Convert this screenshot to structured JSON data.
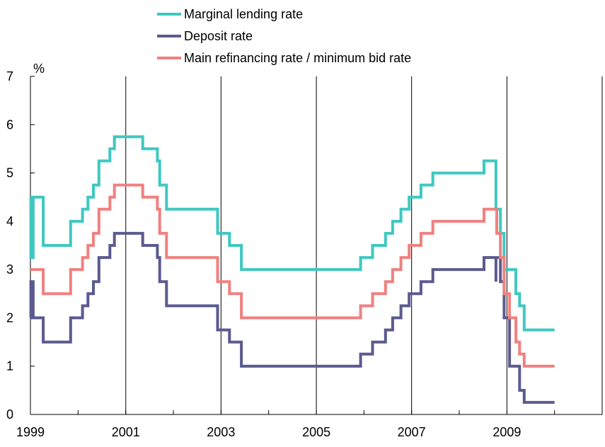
{
  "chart_data": {
    "type": "line",
    "ylabel": "%",
    "ylim": [
      0,
      7
    ],
    "yticks": [
      "0",
      "1",
      "2",
      "3",
      "4",
      "5",
      "6",
      "7"
    ],
    "xlim": [
      "1999-01-01",
      "2011-01-01"
    ],
    "xticks": [
      "1999",
      "2001",
      "2003",
      "2005",
      "2007",
      "2009"
    ],
    "grid": "vertical lines at labeled years",
    "legend_placement": "top",
    "series": [
      {
        "name": "Marginal lending rate",
        "color": "#3ec8c0",
        "points": [
          [
            "1999-01-01",
            4.5
          ],
          [
            "1999-01-04",
            3.25
          ],
          [
            "1999-01-22",
            4.5
          ],
          [
            "1999-04-09",
            3.5
          ],
          [
            "1999-11-05",
            4.0
          ],
          [
            "2000-02-04",
            4.25
          ],
          [
            "2000-03-17",
            4.5
          ],
          [
            "2000-04-28",
            4.75
          ],
          [
            "2000-06-09",
            5.25
          ],
          [
            "2000-06-28",
            5.25
          ],
          [
            "2000-09-01",
            5.5
          ],
          [
            "2000-10-06",
            5.75
          ],
          [
            "2001-05-11",
            5.5
          ],
          [
            "2001-08-31",
            5.25
          ],
          [
            "2001-09-18",
            4.75
          ],
          [
            "2001-11-09",
            4.25
          ],
          [
            "2002-12-06",
            3.75
          ],
          [
            "2003-03-07",
            3.5
          ],
          [
            "2003-06-06",
            3.0
          ],
          [
            "2005-12-06",
            3.25
          ],
          [
            "2006-03-08",
            3.5
          ],
          [
            "2006-06-15",
            3.75
          ],
          [
            "2006-08-09",
            4.0
          ],
          [
            "2006-10-11",
            4.25
          ],
          [
            "2006-12-13",
            4.5
          ],
          [
            "2007-03-14",
            4.75
          ],
          [
            "2007-06-13",
            5.0
          ],
          [
            "2008-07-09",
            5.25
          ],
          [
            "2008-10-09",
            4.25
          ],
          [
            "2008-11-12",
            3.75
          ],
          [
            "2008-12-10",
            3.0
          ],
          [
            "2009-01-21",
            3.0
          ],
          [
            "2009-03-11",
            2.5
          ],
          [
            "2009-04-08",
            2.25
          ],
          [
            "2009-05-13",
            1.75
          ],
          [
            "2010-01-01",
            1.75
          ]
        ]
      },
      {
        "name": "Deposit rate",
        "color": "#5b5a8f",
        "points": [
          [
            "1999-01-01",
            2.0
          ],
          [
            "1999-01-04",
            2.75
          ],
          [
            "1999-01-22",
            2.0
          ],
          [
            "1999-04-09",
            1.5
          ],
          [
            "1999-11-05",
            2.0
          ],
          [
            "2000-02-04",
            2.25
          ],
          [
            "2000-03-17",
            2.5
          ],
          [
            "2000-04-28",
            2.75
          ],
          [
            "2000-06-09",
            3.25
          ],
          [
            "2000-09-01",
            3.5
          ],
          [
            "2000-10-06",
            3.75
          ],
          [
            "2001-05-11",
            3.5
          ],
          [
            "2001-08-31",
            3.25
          ],
          [
            "2001-09-18",
            2.75
          ],
          [
            "2001-11-09",
            2.25
          ],
          [
            "2002-12-06",
            1.75
          ],
          [
            "2003-03-07",
            1.5
          ],
          [
            "2003-06-06",
            1.0
          ],
          [
            "2005-12-06",
            1.25
          ],
          [
            "2006-03-08",
            1.5
          ],
          [
            "2006-06-15",
            1.75
          ],
          [
            "2006-08-09",
            2.0
          ],
          [
            "2006-10-11",
            2.25
          ],
          [
            "2006-12-13",
            2.5
          ],
          [
            "2007-03-14",
            2.75
          ],
          [
            "2007-06-13",
            3.0
          ],
          [
            "2008-07-09",
            3.25
          ],
          [
            "2008-10-09",
            2.75
          ],
          [
            "2008-10-09",
            3.25
          ],
          [
            "2008-11-12",
            2.75
          ],
          [
            "2008-12-10",
            2.0
          ],
          [
            "2009-01-21",
            1.0
          ],
          [
            "2009-04-08",
            0.5
          ],
          [
            "2009-05-13",
            0.25
          ],
          [
            "2010-01-01",
            0.25
          ]
        ]
      },
      {
        "name": "Main refinancing rate / minimum bid rate",
        "color": "#f08080",
        "points": [
          [
            "1999-01-01",
            3.0
          ],
          [
            "1999-04-09",
            2.5
          ],
          [
            "1999-11-05",
            3.0
          ],
          [
            "2000-02-04",
            3.25
          ],
          [
            "2000-03-17",
            3.5
          ],
          [
            "2000-04-28",
            3.75
          ],
          [
            "2000-06-09",
            4.25
          ],
          [
            "2000-09-01",
            4.5
          ],
          [
            "2000-10-06",
            4.75
          ],
          [
            "2001-05-11",
            4.5
          ],
          [
            "2001-08-31",
            4.25
          ],
          [
            "2001-09-18",
            3.75
          ],
          [
            "2001-11-09",
            3.25
          ],
          [
            "2002-12-06",
            2.75
          ],
          [
            "2003-03-07",
            2.5
          ],
          [
            "2003-06-06",
            2.0
          ],
          [
            "2005-12-06",
            2.25
          ],
          [
            "2006-03-08",
            2.5
          ],
          [
            "2006-06-15",
            2.75
          ],
          [
            "2006-08-09",
            3.0
          ],
          [
            "2006-10-11",
            3.25
          ],
          [
            "2006-12-13",
            3.5
          ],
          [
            "2007-03-14",
            3.75
          ],
          [
            "2007-06-13",
            4.0
          ],
          [
            "2008-07-09",
            4.25
          ],
          [
            "2008-10-15",
            3.75
          ],
          [
            "2008-11-12",
            3.25
          ],
          [
            "2008-12-10",
            2.5
          ],
          [
            "2009-01-21",
            2.0
          ],
          [
            "2009-03-11",
            1.5
          ],
          [
            "2009-04-08",
            1.25
          ],
          [
            "2009-05-13",
            1.0
          ],
          [
            "2010-01-01",
            1.0
          ]
        ]
      }
    ]
  }
}
